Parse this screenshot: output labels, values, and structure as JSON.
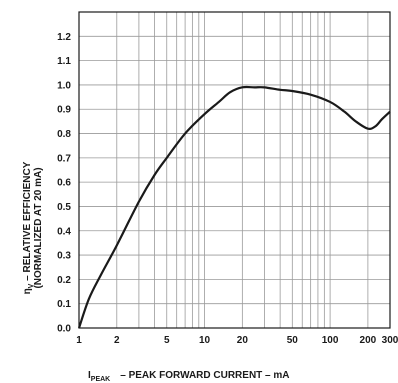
{
  "chart_data": {
    "type": "line",
    "x_scale": "log",
    "xlim": [
      1,
      300
    ],
    "ylim": [
      0.0,
      1.3
    ],
    "grid": true,
    "x_ticks": [
      1,
      2,
      5,
      10,
      20,
      50,
      100,
      200,
      300
    ],
    "x_tick_labels": [
      "1",
      "2",
      "5",
      "10",
      "20",
      "50",
      "100",
      "200",
      "300"
    ],
    "y_ticks": [
      0.0,
      0.1,
      0.2,
      0.3,
      0.4,
      0.5,
      0.6,
      0.7,
      0.8,
      0.9,
      1.0,
      1.1,
      1.2
    ],
    "y_tick_labels": [
      "0.0",
      "0.1",
      "0.2",
      "0.3",
      "0.4",
      "0.5",
      "0.6",
      "0.7",
      "0.8",
      "0.9",
      "1.0",
      "1.1",
      "1.2"
    ],
    "xlabel_main": "I",
    "xlabel_sub": "PEAK",
    "xlabel_rest": "– PEAK FORWARD CURRENT – mA",
    "ylabel_main": "η",
    "ylabel_sub": "V",
    "ylabel_rest": " – RELATIVE EFFICIENCY",
    "ylabel_line2": "(NORMALIZED AT 20 mA)",
    "series": [
      {
        "x": [
          1,
          1.2,
          1.5,
          2,
          3,
          4,
          5,
          7,
          10,
          13,
          16,
          20,
          25,
          30,
          40,
          50,
          70,
          100,
          130,
          160,
          200,
          230,
          260,
          300
        ],
        "y": [
          0.0,
          0.12,
          0.22,
          0.34,
          0.52,
          0.63,
          0.7,
          0.8,
          0.88,
          0.93,
          0.97,
          0.99,
          0.99,
          0.99,
          0.98,
          0.975,
          0.96,
          0.93,
          0.89,
          0.85,
          0.82,
          0.83,
          0.86,
          0.89
        ]
      }
    ]
  }
}
